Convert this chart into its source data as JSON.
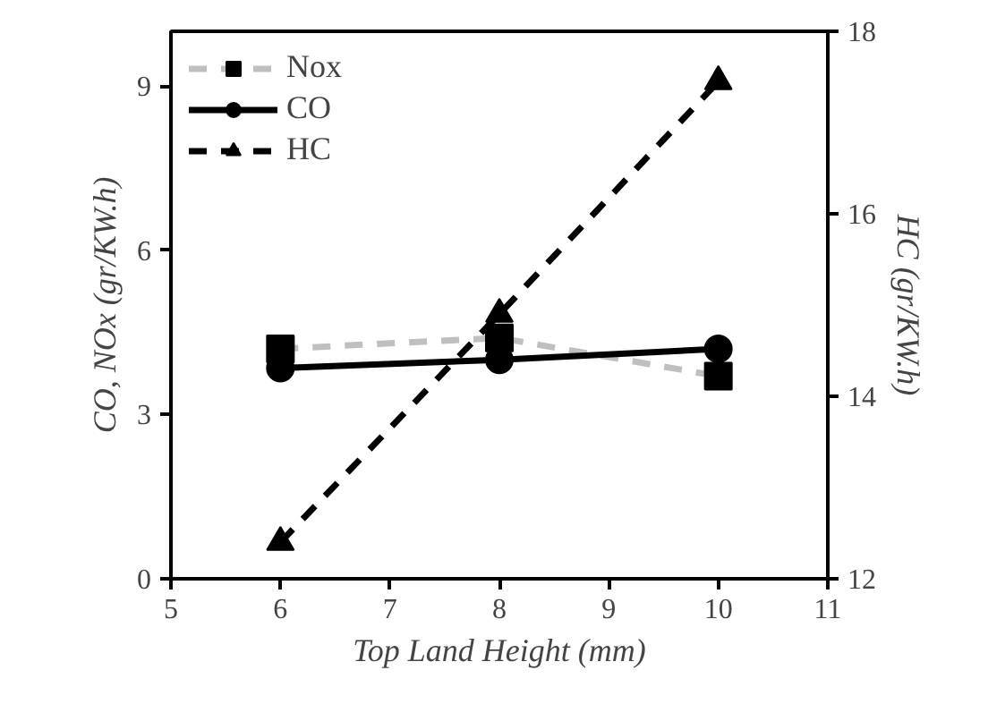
{
  "chart_data": {
    "type": "line",
    "xlabel": "Top Land Height (mm)",
    "ylabel": "CO, NOx (gr/KW.h)",
    "y2label": "HC (gr/KW.h)",
    "x": [
      6,
      8,
      10
    ],
    "series": [
      {
        "name": "Nox",
        "color": "#bfbfbf",
        "values": [
          4.2,
          4.4,
          3.7
        ],
        "marker": "square",
        "line_style": "dashed"
      },
      {
        "name": "CO",
        "color": "#000000",
        "values": [
          3.85,
          4.0,
          4.2
        ],
        "marker": "circle",
        "line_style": "solid"
      },
      {
        "name": "HC",
        "color": "#000000",
        "values": [
          12.4,
          14.9,
          17.45
        ],
        "marker": "triangle",
        "line_style": "dashed",
        "axis": "y2"
      }
    ],
    "xlim": [
      5,
      11
    ],
    "xticks": [
      5,
      6,
      7,
      8,
      9,
      10,
      11
    ],
    "ylim": [
      0,
      10
    ],
    "yticks": [
      0,
      3,
      6,
      9
    ],
    "y2lim": [
      12,
      18
    ],
    "y2ticks": [
      12,
      14,
      16,
      18
    ],
    "grid": false,
    "legend": "top left"
  }
}
